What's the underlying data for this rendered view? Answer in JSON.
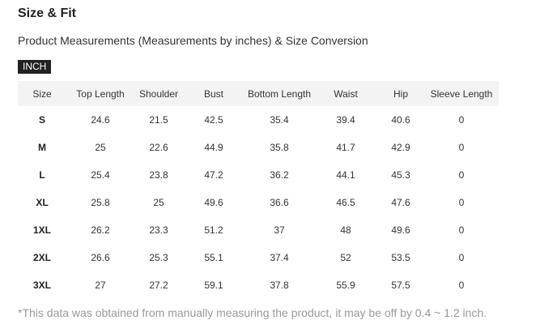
{
  "section": {
    "title": "Size & Fit",
    "subtitle": "Product Measurements (Measurements by inches) & Size Conversion",
    "unit_tab": "INCH"
  },
  "table": {
    "headers": [
      "Size",
      "Top Length",
      "Shoulder",
      "Bust",
      "Bottom Length",
      "Waist",
      "Hip",
      "Sleeve Length"
    ],
    "rows": [
      [
        "S",
        "24.6",
        "21.5",
        "42.5",
        "35.4",
        "39.4",
        "40.6",
        "0"
      ],
      [
        "M",
        "25",
        "22.6",
        "44.9",
        "35.8",
        "41.7",
        "42.9",
        "0"
      ],
      [
        "L",
        "25.4",
        "23.8",
        "47.2",
        "36.2",
        "44.1",
        "45.3",
        "0"
      ],
      [
        "XL",
        "25.8",
        "25",
        "49.6",
        "36.6",
        "46.5",
        "47.6",
        "0"
      ],
      [
        "1XL",
        "26.2",
        "23.3",
        "51.2",
        "37",
        "48",
        "49.6",
        "0"
      ],
      [
        "2XL",
        "26.6",
        "25.3",
        "55.1",
        "37.4",
        "52",
        "53.5",
        "0"
      ],
      [
        "3XL",
        "27",
        "27.2",
        "59.1",
        "37.8",
        "55.9",
        "57.5",
        "0"
      ]
    ]
  },
  "footnote": "*This data was obtained from manually measuring the product, it may be off by 0.4 ~ 1.2 inch.",
  "colors": {
    "header_background": "#f3f3f3",
    "badge_background": "#222222",
    "note_text": "#999999"
  }
}
